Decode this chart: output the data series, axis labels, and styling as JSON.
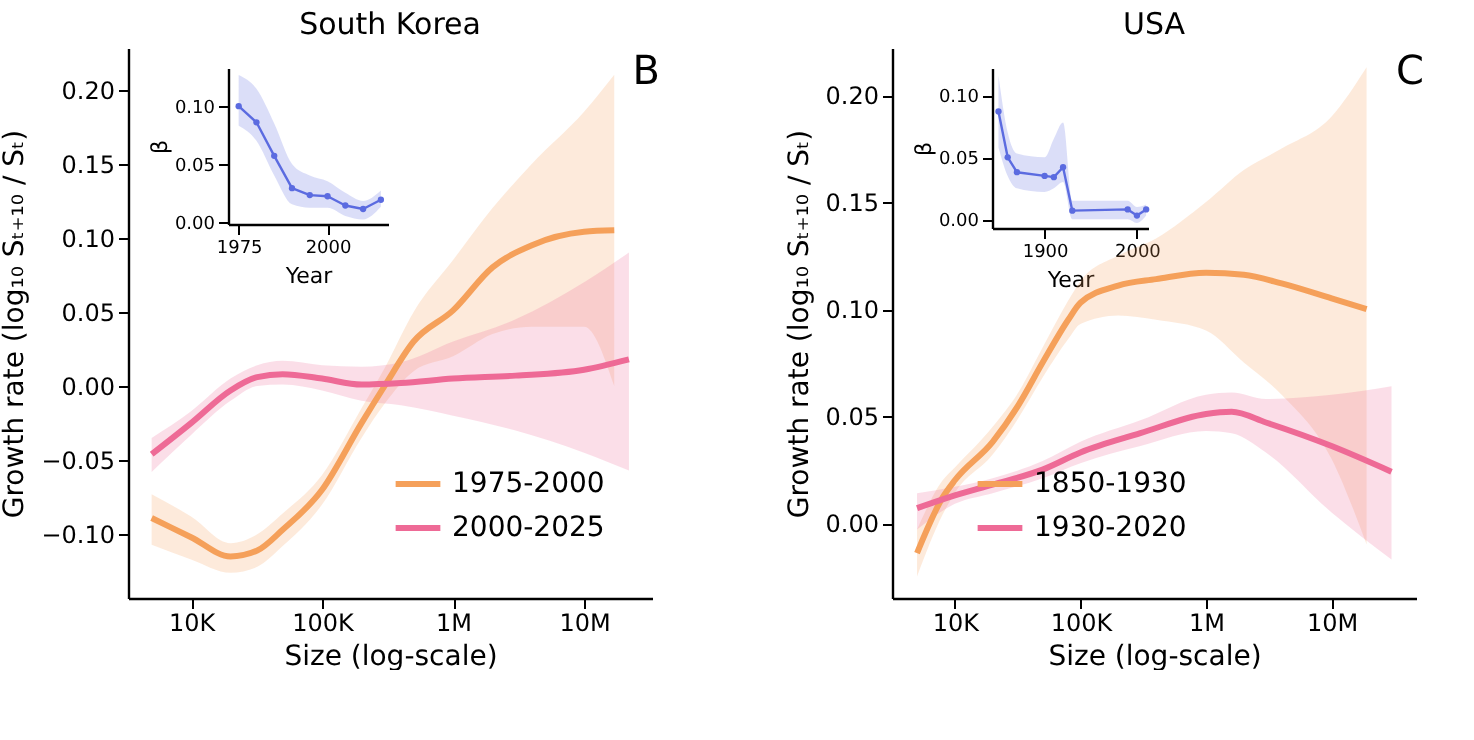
{
  "chart_data": [
    {
      "type": "line",
      "title": "South Korea",
      "xlabel": "Size (log-scale)",
      "ylabel": "Growth rate (log₁₀ Sₜ₊₁₀ / Sₜ)",
      "log": "x",
      "grid": false,
      "legend": "bottom right",
      "marker": "none",
      "line_style": "solid",
      "xlim": [
        3300,
        33000000
      ],
      "ylim": [
        -0.143,
        0.228
      ],
      "xticks": [
        {
          "value": 10000,
          "label": "10K"
        },
        {
          "value": 100000,
          "label": "100K"
        },
        {
          "value": 1000000,
          "label": "1M"
        },
        {
          "value": 10000000,
          "label": "10M"
        }
      ],
      "yticks": [
        {
          "value": -0.1,
          "label": "−0.10"
        },
        {
          "value": -0.05,
          "label": "−0.05"
        },
        {
          "value": 0,
          "label": "0.00"
        },
        {
          "value": 0.05,
          "label": "0.05"
        },
        {
          "value": 0.1,
          "label": "0.10"
        },
        {
          "value": 0.15,
          "label": "0.15"
        },
        {
          "value": 0.2,
          "label": "0.20"
        }
      ],
      "annotations": [
        "B"
      ],
      "series": [
        {
          "name": "1975-2000",
          "color": "#f5a05a",
          "x": [
            5000,
            10000,
            20000,
            32000,
            50000,
            100000,
            200000,
            300000,
            500000,
            1000000,
            2000000,
            4000000,
            10000000,
            17000000
          ],
          "values": [
            -0.089,
            -0.102,
            -0.115,
            -0.111,
            -0.097,
            -0.07,
            -0.025,
            0.0,
            0.03,
            0.051,
            0.08,
            0.095,
            0.104,
            0.105
          ],
          "lower": [
            -0.107,
            -0.117,
            -0.126,
            -0.122,
            -0.108,
            -0.08,
            -0.035,
            -0.012,
            0.01,
            0.02,
            0.035,
            0.04,
            0.04,
            0.0
          ],
          "upper": [
            -0.073,
            -0.088,
            -0.106,
            -0.1,
            -0.086,
            -0.06,
            -0.015,
            0.012,
            0.05,
            0.085,
            0.12,
            0.15,
            0.185,
            0.21
          ]
        },
        {
          "name": "2000-2025",
          "color": "#ee6a96",
          "x": [
            5000,
            10000,
            20000,
            32000,
            50000,
            100000,
            200000,
            400000,
            1000000,
            3000000,
            10000000,
            22000000
          ],
          "values": [
            -0.046,
            -0.025,
            -0.003,
            0.006,
            0.008,
            0.005,
            0.001,
            0.002,
            0.005,
            0.007,
            0.011,
            0.018
          ],
          "lower": [
            -0.058,
            -0.033,
            -0.01,
            0.0,
            0.001,
            -0.003,
            -0.01,
            -0.013,
            -0.02,
            -0.03,
            -0.045,
            -0.057
          ],
          "upper": [
            -0.035,
            -0.017,
            0.005,
            0.014,
            0.017,
            0.014,
            0.013,
            0.016,
            0.03,
            0.045,
            0.07,
            0.09
          ]
        }
      ]
    },
    {
      "type": "line",
      "xlabel": "Year",
      "ylabel": "β",
      "grid": false,
      "legend": false,
      "marker": "circle",
      "line_style": "solid",
      "xlim": [
        1972,
        2017
      ],
      "ylim": [
        -0.002,
        0.133
      ],
      "xticks": [
        1975,
        2000
      ],
      "yticks": [
        {
          "value": 0,
          "label": "0.00"
        },
        {
          "value": 0.05,
          "label": "0.05"
        },
        {
          "value": 0.1,
          "label": "0.10"
        }
      ],
      "series": [
        {
          "color": "#5b6be0",
          "x": [
            1975,
            1980,
            1985,
            1990,
            1995,
            2000,
            2005,
            2010,
            2015
          ],
          "values": [
            0.1,
            0.086,
            0.057,
            0.029,
            0.023,
            0.022,
            0.014,
            0.011,
            0.019
          ],
          "lower": [
            0.083,
            0.07,
            0.04,
            0.015,
            0.012,
            0.012,
            0.005,
            0.002,
            0.013
          ],
          "upper": [
            0.127,
            0.115,
            0.085,
            0.05,
            0.04,
            0.035,
            0.025,
            0.018,
            0.027
          ]
        }
      ]
    },
    {
      "type": "line",
      "title": "USA",
      "xlabel": "Size (log-scale)",
      "ylabel": "Growth rate (log₁₀ Sₜ₊₁₀ / Sₜ)",
      "log": "x",
      "grid": false,
      "legend": "bottom",
      "marker": "none",
      "line_style": "solid",
      "xlim": [
        3160,
        47000000
      ],
      "ylim": [
        -0.035,
        0.222
      ],
      "xticks": [
        {
          "value": 10000,
          "label": "10K"
        },
        {
          "value": 100000,
          "label": "100K"
        },
        {
          "value": 1000000,
          "label": "1M"
        },
        {
          "value": 10000000,
          "label": "10M"
        }
      ],
      "yticks": [
        {
          "value": 0,
          "label": "0.00"
        },
        {
          "value": 0.05,
          "label": "0.05"
        },
        {
          "value": 0.1,
          "label": "0.10"
        },
        {
          "value": 0.15,
          "label": "0.15"
        },
        {
          "value": 0.2,
          "label": "0.20"
        }
      ],
      "annotations": [
        "C"
      ],
      "series": [
        {
          "name": "1850-1930",
          "color": "#f5a05a",
          "x": [
            5000,
            8000,
            10000,
            20000,
            32000,
            50000,
            80000,
            100000,
            200000,
            400000,
            1000000,
            2000000,
            4000000,
            10000000,
            19000000
          ],
          "values": [
            -0.014,
            0.012,
            0.02,
            0.038,
            0.055,
            0.075,
            0.095,
            0.103,
            0.111,
            0.114,
            0.117,
            0.116,
            0.112,
            0.105,
            0.1
          ],
          "lower": [
            -0.025,
            0.004,
            0.014,
            0.032,
            0.049,
            0.068,
            0.086,
            0.093,
            0.097,
            0.095,
            0.09,
            0.075,
            0.06,
            0.03,
            -0.01
          ],
          "upper": [
            -0.003,
            0.02,
            0.026,
            0.045,
            0.061,
            0.082,
            0.104,
            0.113,
            0.125,
            0.133,
            0.15,
            0.165,
            0.175,
            0.19,
            0.213
          ]
        },
        {
          "name": "1930-2020",
          "color": "#ee6a96",
          "x": [
            5000,
            10000,
            20000,
            50000,
            100000,
            300000,
            1000000,
            1600000,
            3000000,
            10000000,
            30000000
          ],
          "values": [
            0.007,
            0.013,
            0.018,
            0.025,
            0.033,
            0.042,
            0.051,
            0.052,
            0.047,
            0.036,
            0.024
          ],
          "lower": [
            -0.003,
            0.009,
            0.014,
            0.021,
            0.028,
            0.036,
            0.043,
            0.042,
            0.033,
            0.005,
            -0.017
          ],
          "upper": [
            0.014,
            0.017,
            0.021,
            0.029,
            0.038,
            0.048,
            0.06,
            0.061,
            0.058,
            0.06,
            0.064
          ]
        }
      ]
    },
    {
      "type": "line",
      "xlabel": "Year",
      "ylabel": "β",
      "grid": false,
      "legend": false,
      "marker": "circle",
      "line_style": "solid",
      "xlim": [
        1843,
        2012
      ],
      "ylim": [
        -0.007,
        0.122
      ],
      "xticks": [
        1900,
        2000
      ],
      "yticks": [
        {
          "value": 0,
          "label": "0.00"
        },
        {
          "value": 0.05,
          "label": "0.05"
        },
        {
          "value": 0.1,
          "label": "0.10"
        }
      ],
      "series": [
        {
          "color": "#5b6be0",
          "x": [
            1850,
            1860,
            1870,
            1900,
            1910,
            1920,
            1930,
            1990,
            2000,
            2010
          ],
          "values": [
            0.087,
            0.05,
            0.038,
            0.035,
            0.034,
            0.042,
            0.007,
            0.008,
            0.003,
            0.008
          ],
          "lower": [
            0.058,
            0.035,
            0.025,
            0.022,
            0.025,
            0.03,
            0.0,
            0.0,
            -0.003,
            0.003
          ],
          "upper": [
            0.116,
            0.07,
            0.053,
            0.05,
            0.065,
            0.078,
            0.015,
            0.015,
            0.01,
            0.012
          ]
        }
      ]
    }
  ]
}
